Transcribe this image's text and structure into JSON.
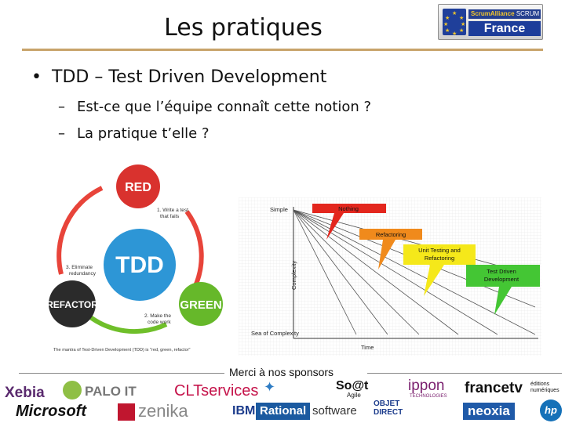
{
  "slide": {
    "title": "Les pratiques",
    "bullet": "TDD – Test Driven Development",
    "subbullets": [
      "Est-ce que l’équipe connaît cette notion ?",
      "La pratique t’elle ?"
    ],
    "bullet_symbol": "•",
    "dash_symbol": "–"
  },
  "logo_scrum": {
    "brand": "ScrumAlliance",
    "group": "SCRUM USER GROUP",
    "country": "France"
  },
  "tdd_cycle": {
    "center": "TDD",
    "red": "RED",
    "green": "GREEN",
    "refactor": "REFACTOR",
    "step1": [
      "1. Write a test",
      "that fails"
    ],
    "step2": [
      "2. Make the",
      "code work"
    ],
    "step3": [
      "3. Eliminate",
      "redundancy"
    ],
    "caption": "The mantra of Test-Driven Development (TDD) is \"red, green, refactor\""
  },
  "complexity_chart": {
    "simple": "Simple",
    "sea": "Sea of Complexity",
    "ylabel": "Complexity",
    "xlabel": "Time",
    "boxes": [
      "Nothing",
      "Refactoring",
      "Unit Testing and",
      "Refactoring",
      "Test Driven",
      "Development"
    ]
  },
  "sponsors": {
    "caption": "Merci à nos sponsors",
    "xebia": "Xebia",
    "palo": "PALO IT",
    "clt": "CLTservices",
    "soat": "So@t",
    "soat_sub": "Agile",
    "ippon": "ippon",
    "ippon_sub": "TECHNOLOGIES",
    "francetv": "francetv",
    "francetv_sub": [
      "éditions",
      "numériques"
    ],
    "microsoft": "Microsoft",
    "zenika": "zenika",
    "ibm": "IBM",
    "rational": "Rational",
    "software": "software",
    "objet": "OBJET",
    "direct": "DIRECT",
    "neoxia": "neoxia",
    "hp": "hp"
  }
}
